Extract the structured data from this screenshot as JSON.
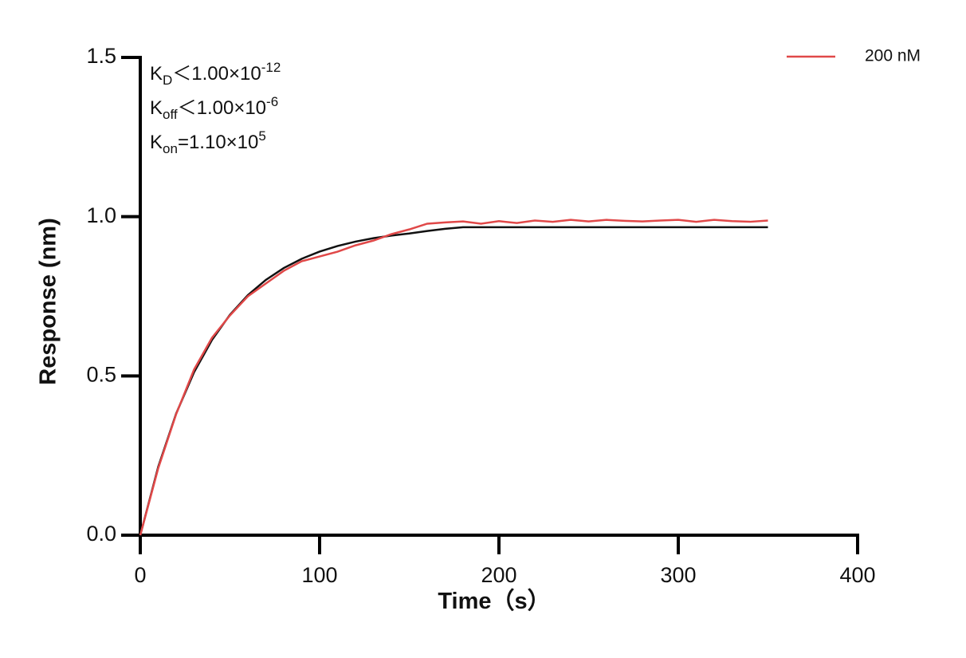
{
  "chart_data": {
    "type": "line",
    "xlabel": "Time（s）",
    "ylabel": "Response (nm)",
    "annotations": [
      {
        "base": "K",
        "sub": "D",
        "text": "＜1.00×10",
        "sup": "-12"
      },
      {
        "base": "K",
        "sub": "off",
        "text": "＜1.00×10",
        "sup": "-6"
      },
      {
        "base": "K",
        "sub": "on",
        "text": "=1.10×10",
        "sup": "5"
      }
    ],
    "x": [
      0,
      10,
      20,
      30,
      40,
      50,
      60,
      70,
      80,
      90,
      100,
      110,
      120,
      130,
      140,
      150,
      160,
      170,
      180,
      190,
      200,
      210,
      220,
      230,
      240,
      250,
      260,
      270,
      280,
      290,
      300,
      310,
      320,
      330,
      340,
      350
    ],
    "series": [
      {
        "color": "#111111",
        "values": [
          0,
          0.2146,
          0.3817,
          0.5118,
          0.6131,
          0.6921,
          0.7536,
          0.8014,
          0.8388,
          0.8678,
          0.8904,
          0.908,
          0.9217,
          0.9324,
          0.9407,
          0.9472,
          0.955,
          0.962,
          0.967,
          0.967,
          0.967,
          0.967,
          0.967,
          0.967,
          0.967,
          0.967,
          0.967,
          0.967,
          0.967,
          0.967,
          0.967,
          0.967,
          0.967,
          0.967,
          0.967,
          0.967
        ]
      },
      {
        "name": "200 nM",
        "color": "#e04848",
        "values": [
          0,
          0.21,
          0.38,
          0.52,
          0.62,
          0.69,
          0.75,
          0.79,
          0.83,
          0.86,
          0.875,
          0.89,
          0.91,
          0.925,
          0.945,
          0.96,
          0.978,
          0.982,
          0.985,
          0.978,
          0.986,
          0.98,
          0.988,
          0.984,
          0.99,
          0.985,
          0.99,
          0.987,
          0.985,
          0.988,
          0.99,
          0.984,
          0.99,
          0.986,
          0.984,
          0.988
        ]
      }
    ],
    "xlim": [
      0,
      400
    ],
    "xticks": [
      0,
      100,
      200,
      300,
      400
    ],
    "ylim": [
      0,
      1.5
    ],
    "yticks": [
      {
        "value": 0,
        "label": "0.0"
      },
      0.5,
      {
        "value": 1,
        "label": "1.0"
      },
      1.5
    ],
    "legend": "upper right",
    "grid": false
  }
}
